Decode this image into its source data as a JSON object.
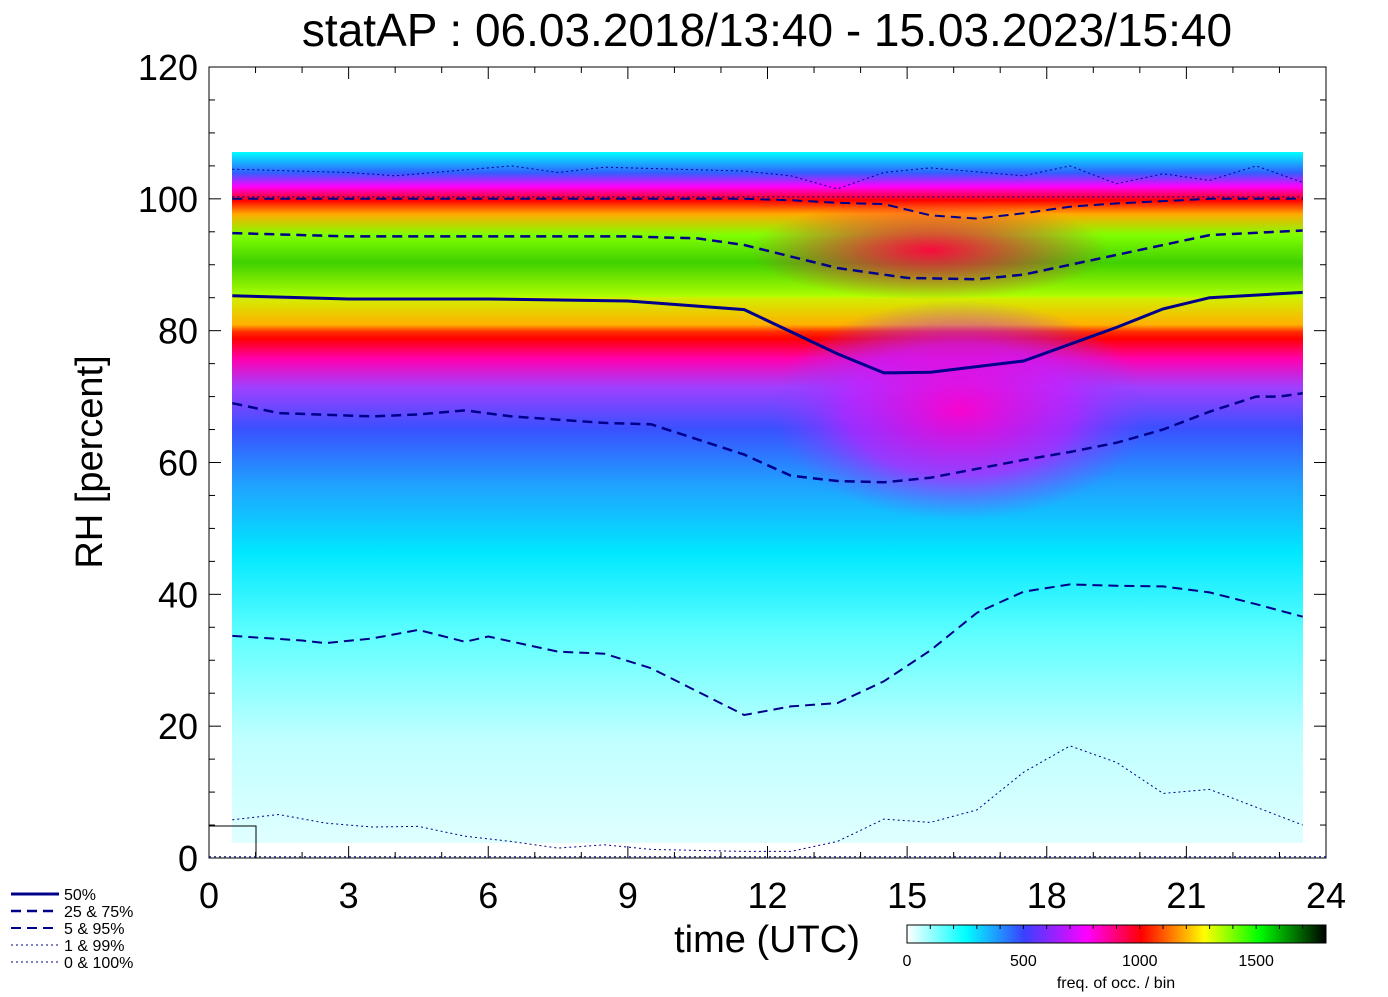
{
  "chart_data": {
    "type": "heatmap",
    "title": "statAP : 06.03.2018/13:40 - 15.03.2023/15:40",
    "xlabel": "time (UTC)",
    "ylabel": "RH [percent]",
    "xlim": [
      0,
      24
    ],
    "ylim": [
      0,
      120
    ],
    "xticks": [
      "0",
      "3",
      "6",
      "9",
      "12",
      "15",
      "18",
      "21",
      "24"
    ],
    "yticks": [
      "0",
      "20",
      "40",
      "60",
      "80",
      "100",
      "120"
    ],
    "colorbar": {
      "label": "freq. of occ. / bin",
      "range": [
        0,
        1800
      ],
      "ticks": [
        "0",
        "500",
        "1000",
        "1500"
      ],
      "colors": [
        "#ffffff",
        "#00ffff",
        "#3030ff",
        "#ff00ff",
        "#ff0000",
        "#ffff00",
        "#00ff00",
        "#000000"
      ]
    },
    "legend": {
      "placement": "bottom-left",
      "entries": [
        "50%",
        "25 &  75%",
        "5 &  95%",
        "1 &  99%",
        "0 & 100%"
      ]
    },
    "series": [
      {
        "name": "50%",
        "style": "solid",
        "x": [
          0.5,
          3,
          6,
          9,
          11.5,
          13.5,
          14.5,
          15.5,
          17.5,
          19.5,
          20.5,
          21.5,
          23.5
        ],
        "y": [
          85.3,
          84.8,
          84.8,
          84.5,
          83.2,
          76.5,
          73.6,
          73.7,
          75.4,
          80.5,
          83.3,
          85,
          85.8
        ]
      },
      {
        "name": "75%",
        "style": "dash",
        "x": [
          0.5,
          3,
          6,
          9,
          10.5,
          11.5,
          13.5,
          15,
          16.5,
          17.5,
          19.5,
          21.5,
          23.5
        ],
        "y": [
          94.8,
          94.3,
          94.3,
          94.3,
          94,
          93,
          89.5,
          88,
          87.8,
          88.5,
          91.5,
          94.5,
          95.2
        ]
      },
      {
        "name": "25%",
        "style": "dash",
        "x": [
          0.5,
          1.5,
          3.5,
          4.5,
          5.5,
          6.5,
          7.5,
          8.5,
          9.5,
          11.5,
          12.5,
          13.5,
          14.5,
          15.5,
          17.5,
          18.5,
          19.5,
          20.5,
          21.5,
          22.5,
          23,
          23.5
        ],
        "y": [
          69,
          67.5,
          67,
          67.3,
          67.9,
          67,
          66.5,
          66,
          65.8,
          61.2,
          58,
          57.2,
          57,
          57.7,
          60.4,
          61.6,
          63,
          65,
          67.7,
          70,
          70,
          70.5
        ]
      },
      {
        "name": "95%",
        "style": "dash-thin",
        "x": [
          0.5,
          3,
          9.5,
          11.5,
          12.5,
          13.5,
          14.5,
          15.5,
          16.5,
          17.5,
          18.5,
          19.5,
          21.5,
          23.5
        ],
        "y": [
          100,
          100,
          100,
          100,
          99.8,
          99.4,
          99.2,
          97.5,
          97,
          97.8,
          98.8,
          99.3,
          100,
          100
        ]
      },
      {
        "name": "5%",
        "style": "dash-thin",
        "x": [
          0.5,
          2,
          2.5,
          3.5,
          4.5,
          5.5,
          6,
          7.5,
          8.5,
          9.5,
          11.5,
          12.5,
          13.5,
          14.5,
          15.5,
          16.5,
          17.5,
          18.5,
          19.5,
          20.5,
          21.5,
          22.5,
          23.5
        ],
        "y": [
          33.7,
          33,
          32.6,
          33.3,
          34.6,
          32.8,
          33.6,
          31.3,
          31,
          28.8,
          21.7,
          23,
          23.5,
          26.8,
          31.5,
          37.2,
          40.4,
          41.5,
          41.3,
          41.2,
          40.3,
          38.5,
          36.6
        ]
      },
      {
        "name": "99%",
        "style": "dot",
        "x": [
          0.5,
          3,
          4,
          6.5,
          7.5,
          8.5,
          11.5,
          12.5,
          13.5,
          14.5,
          15.5,
          17.5,
          18.5,
          19.5,
          20.5,
          21.5,
          22.5,
          23.5
        ],
        "y": [
          104.5,
          104,
          103.5,
          105,
          104,
          104.8,
          104.2,
          103.5,
          101.5,
          104,
          104.7,
          103.5,
          105,
          102.3,
          103.8,
          102.8,
          105,
          102.5
        ]
      },
      {
        "name": "1%",
        "style": "dot",
        "x": [
          0.5,
          1.5,
          2.5,
          3.5,
          4.5,
          5.5,
          6.5,
          7.5,
          8.5,
          9.5,
          11.5,
          12.5,
          13.5,
          14.5,
          15.5,
          16.5,
          17.5,
          18.5,
          19.5,
          20.5,
          21.5,
          23.5
        ],
        "y": [
          5.8,
          6.6,
          5.3,
          4.7,
          4.8,
          3.3,
          2.5,
          1.5,
          2,
          1.3,
          1,
          1,
          2.5,
          5.9,
          5.4,
          7.3,
          13,
          17,
          14.5,
          9.8,
          10.4,
          5
        ]
      },
      {
        "name": "0%",
        "style": "dot",
        "x": [
          0,
          24
        ],
        "y": [
          0.2,
          0.2
        ]
      },
      {
        "name": "100%",
        "style": "dot",
        "x": [
          0.5,
          23.5
        ],
        "y": [
          100.3,
          100.3
        ]
      }
    ]
  }
}
